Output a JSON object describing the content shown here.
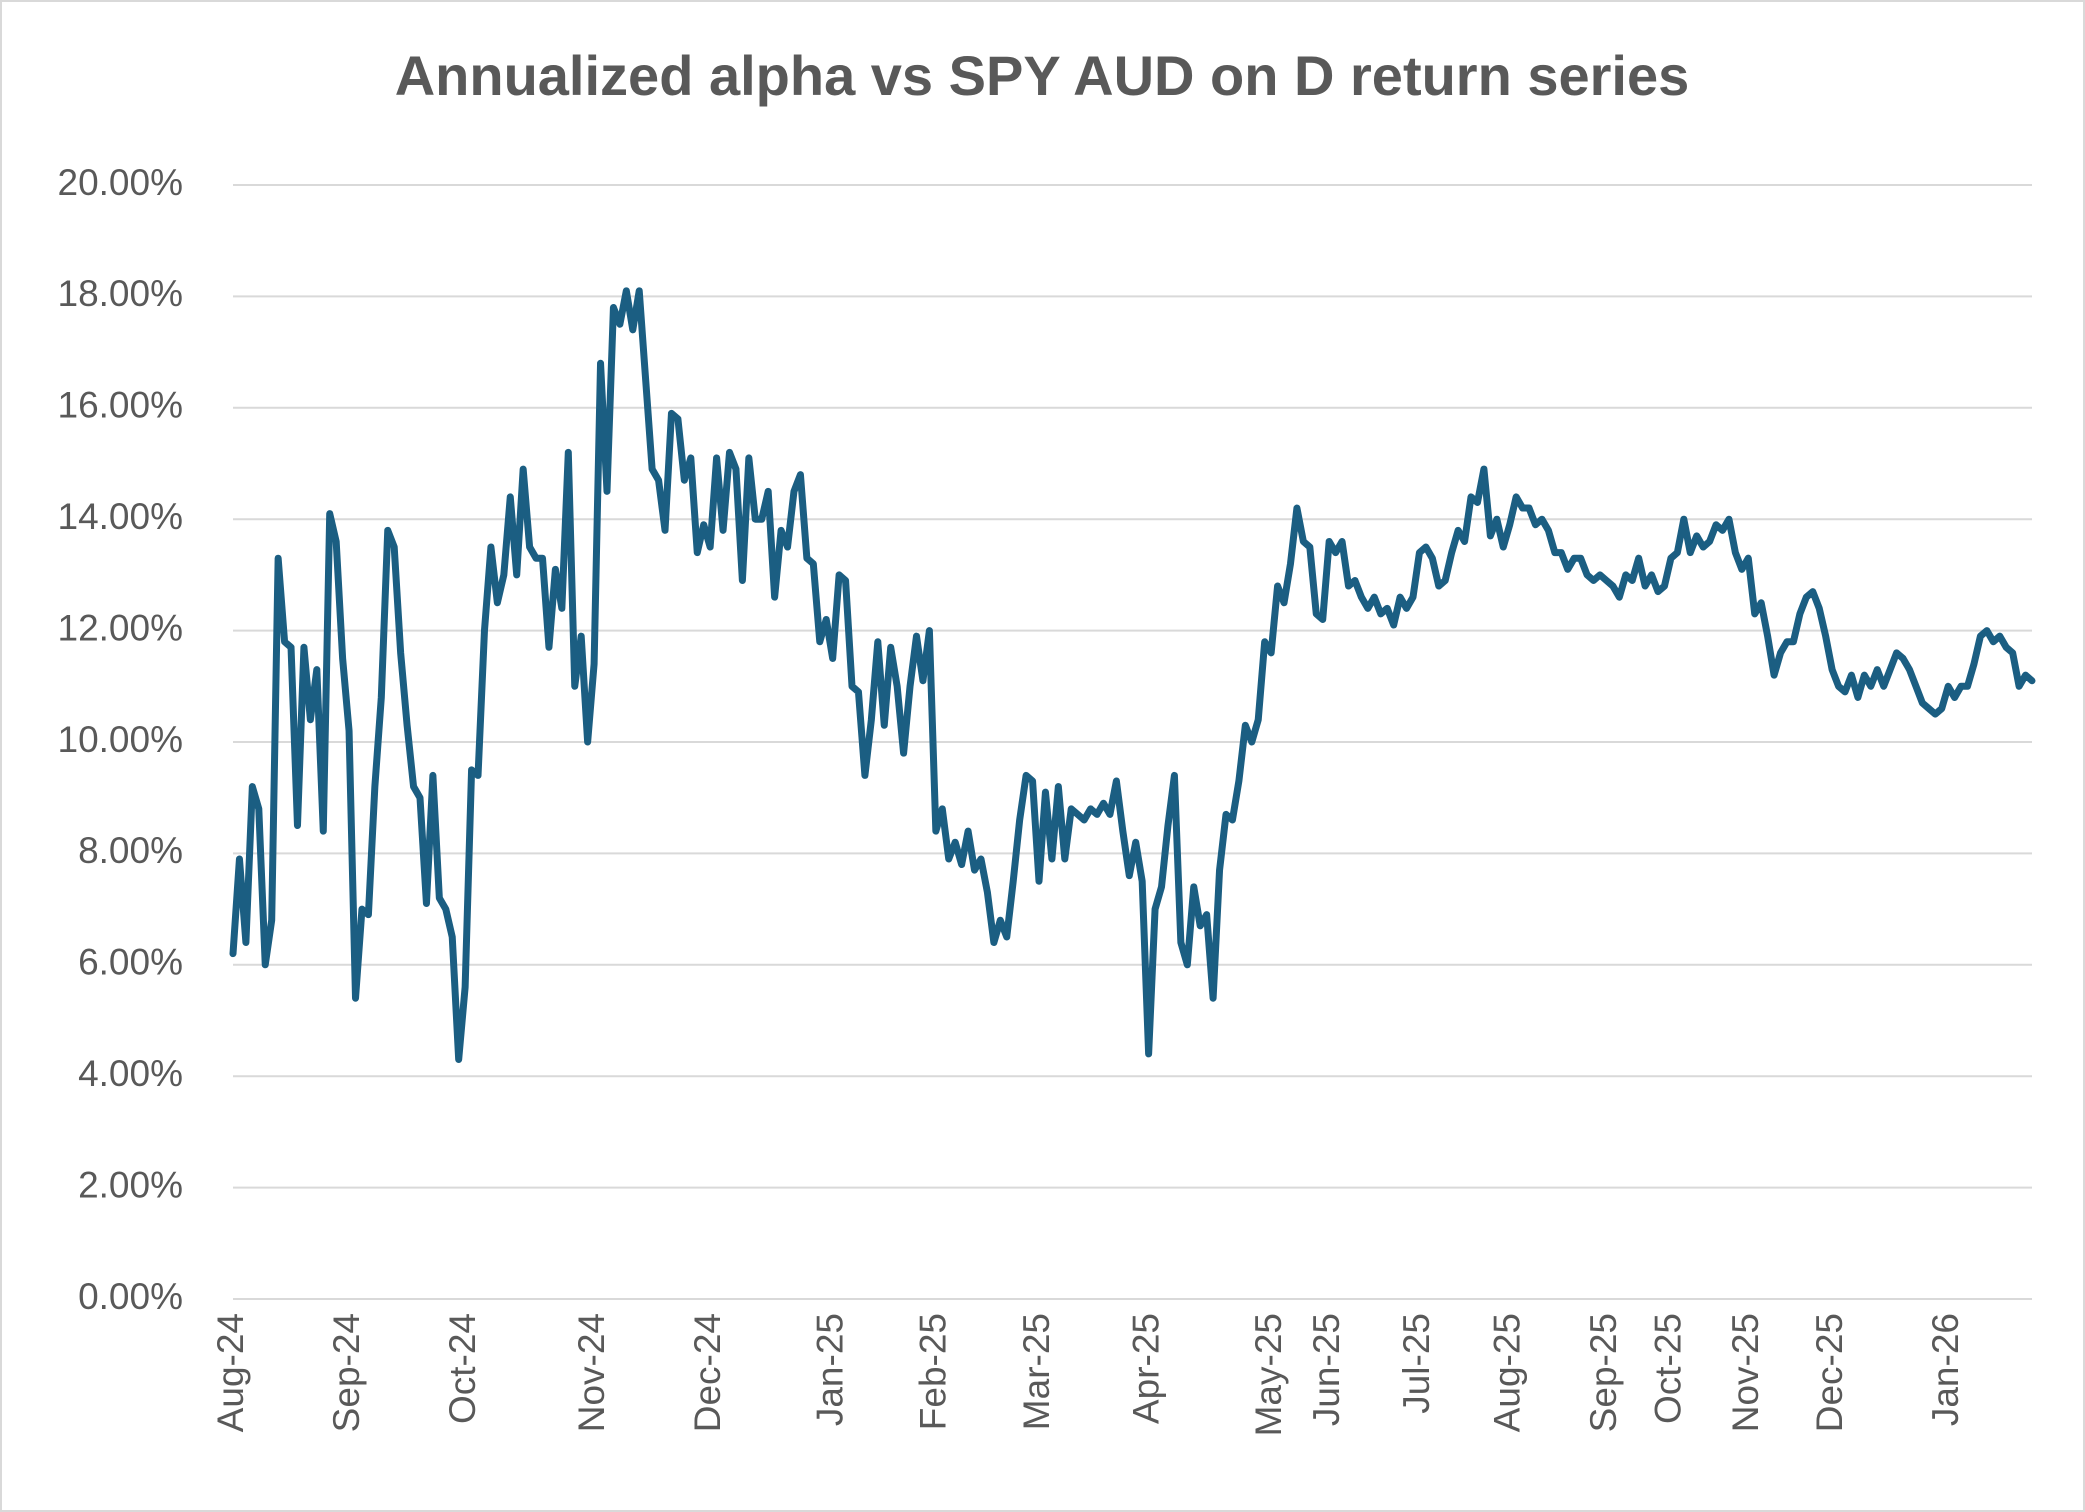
{
  "chart_data": {
    "type": "line",
    "title": "Annualized alpha vs SPY AUD on D return series",
    "color": "#1b5e82",
    "grid": true,
    "ylim": [
      0,
      20
    ],
    "yticks": [
      {
        "value": 0,
        "label": "0.00%"
      },
      {
        "value": 2,
        "label": "2.00%"
      },
      {
        "value": 4,
        "label": "4.00%"
      },
      {
        "value": 6,
        "label": "6.00%"
      },
      {
        "value": 8,
        "label": "8.00%"
      },
      {
        "value": 10,
        "label": "10.00%"
      },
      {
        "value": 12,
        "label": "12.00%"
      },
      {
        "value": 14,
        "label": "14.00%"
      },
      {
        "value": 16,
        "label": "16.00%"
      },
      {
        "value": 18,
        "label": "18.00%"
      },
      {
        "value": 20,
        "label": "20.00%"
      }
    ],
    "categories": [
      "Aug-24",
      null,
      null,
      null,
      null,
      null,
      null,
      null,
      null,
      null,
      null,
      null,
      null,
      null,
      null,
      null,
      null,
      null,
      "Sep-24",
      null,
      null,
      null,
      null,
      null,
      null,
      null,
      null,
      null,
      null,
      null,
      null,
      null,
      null,
      null,
      null,
      null,
      "Oct-24",
      null,
      null,
      null,
      null,
      null,
      null,
      null,
      null,
      null,
      null,
      null,
      null,
      null,
      null,
      null,
      null,
      null,
      null,
      null,
      "Nov-24",
      null,
      null,
      null,
      null,
      null,
      null,
      null,
      null,
      null,
      null,
      null,
      null,
      null,
      null,
      null,
      null,
      null,
      "Dec-24",
      null,
      null,
      null,
      null,
      null,
      null,
      null,
      null,
      null,
      null,
      null,
      null,
      null,
      null,
      null,
      null,
      null,
      null,
      "Jan-25",
      null,
      null,
      null,
      null,
      null,
      null,
      null,
      null,
      null,
      null,
      null,
      null,
      null,
      null,
      null,
      "Feb-25",
      null,
      null,
      null,
      null,
      null,
      null,
      null,
      null,
      null,
      null,
      null,
      null,
      null,
      null,
      null,
      "Mar-25",
      null,
      null,
      null,
      null,
      null,
      null,
      null,
      null,
      null,
      null,
      null,
      null,
      null,
      null,
      null,
      null,
      "Apr-25",
      null,
      null,
      null,
      null,
      null,
      null,
      null,
      null,
      null,
      null,
      null,
      null,
      null,
      null,
      null,
      null,
      null,
      null,
      "May-25",
      null,
      null,
      null,
      null,
      null,
      null,
      null,
      null,
      "Jun-25",
      null,
      null,
      null,
      null,
      null,
      null,
      null,
      null,
      null,
      null,
      null,
      null,
      null,
      "Jul-25",
      null,
      null,
      null,
      null,
      null,
      null,
      null,
      null,
      null,
      null,
      null,
      null,
      null,
      "Aug-25",
      null,
      null,
      null,
      null,
      null,
      null,
      null,
      null,
      null,
      null,
      null,
      null,
      null,
      null,
      "Sep-25",
      null,
      null,
      null,
      null,
      null,
      null,
      null,
      null,
      null,
      "Oct-25",
      null,
      null,
      null,
      null,
      null,
      null,
      null,
      null,
      null,
      null,
      null,
      "Nov-25",
      null,
      null,
      null,
      null,
      null,
      null,
      null,
      null,
      null,
      null,
      null,
      null,
      "Dec-25",
      null,
      null,
      null,
      null,
      null,
      null,
      null,
      null,
      null,
      null,
      null,
      null,
      null,
      null,
      null,
      null,
      null,
      "Jan-26",
      null,
      null,
      null,
      null,
      null,
      null,
      null,
      null,
      null,
      null,
      null,
      null,
      null
    ],
    "values": [
      6.2,
      7.9,
      6.4,
      9.2,
      8.8,
      6.0,
      6.8,
      13.3,
      11.8,
      11.7,
      8.5,
      11.7,
      10.4,
      11.3,
      8.4,
      14.1,
      13.6,
      11.5,
      10.2,
      5.4,
      7.0,
      6.9,
      9.2,
      10.8,
      13.8,
      13.5,
      11.6,
      10.3,
      9.2,
      9.0,
      7.1,
      9.4,
      7.2,
      7.0,
      6.5,
      4.3,
      5.6,
      9.5,
      9.4,
      12.0,
      13.5,
      12.5,
      13.0,
      14.4,
      13.0,
      14.9,
      13.5,
      13.3,
      13.3,
      11.7,
      13.1,
      12.4,
      15.2,
      11.0,
      11.9,
      10.0,
      11.4,
      16.8,
      14.5,
      17.8,
      17.5,
      18.1,
      17.4,
      18.1,
      16.5,
      14.9,
      14.7,
      13.8,
      15.9,
      15.8,
      14.7,
      15.1,
      13.4,
      13.9,
      13.5,
      15.1,
      13.8,
      15.2,
      14.9,
      12.9,
      15.1,
      14.0,
      14.0,
      14.5,
      12.6,
      13.8,
      13.5,
      14.5,
      14.8,
      13.3,
      13.2,
      11.8,
      12.2,
      11.5,
      13.0,
      12.9,
      11.0,
      10.9,
      9.4,
      10.4,
      11.8,
      10.3,
      11.7,
      11.0,
      9.8,
      11.0,
      11.9,
      11.1,
      12.0,
      8.4,
      8.8,
      7.9,
      8.2,
      7.8,
      8.4,
      7.7,
      7.9,
      7.3,
      6.4,
      6.8,
      6.5,
      7.5,
      8.6,
      9.4,
      9.3,
      7.5,
      9.1,
      7.9,
      9.2,
      7.9,
      8.8,
      8.7,
      8.6,
      8.8,
      8.7,
      8.9,
      8.7,
      9.3,
      8.4,
      7.6,
      8.2,
      7.5,
      4.4,
      7.0,
      7.4,
      8.5,
      9.4,
      6.4,
      6.0,
      7.4,
      6.7,
      6.9,
      5.4,
      7.7,
      8.7,
      8.6,
      9.3,
      10.3,
      10.0,
      10.4,
      11.8,
      11.6,
      12.8,
      12.5,
      13.2,
      14.2,
      13.6,
      13.5,
      12.3,
      12.2,
      13.6,
      13.4,
      13.6,
      12.8,
      12.9,
      12.6,
      12.4,
      12.6,
      12.3,
      12.4,
      12.1,
      12.6,
      12.4,
      12.6,
      13.4,
      13.5,
      13.3,
      12.8,
      12.9,
      13.4,
      13.8,
      13.6,
      14.4,
      14.3,
      14.9,
      13.7,
      14.0,
      13.5,
      13.9,
      14.4,
      14.2,
      14.2,
      13.9,
      14.0,
      13.8,
      13.4,
      13.4,
      13.1,
      13.3,
      13.3,
      13.0,
      12.9,
      13.0,
      12.9,
      12.8,
      12.6,
      13.0,
      12.9,
      13.3,
      12.8,
      13.0,
      12.7,
      12.8,
      13.3,
      13.4,
      14.0,
      13.4,
      13.7,
      13.5,
      13.6,
      13.9,
      13.8,
      14.0,
      13.4,
      13.1,
      13.3,
      12.3,
      12.5,
      11.9,
      11.2,
      11.6,
      11.8,
      11.8,
      12.3,
      12.6,
      12.7,
      12.4,
      11.9,
      11.3,
      11.0,
      10.9,
      11.2,
      10.8,
      11.2,
      11.0,
      11.3,
      11.0,
      11.3,
      11.6,
      11.5,
      11.3,
      11.0,
      10.7,
      10.6,
      10.5,
      10.6,
      11.0,
      10.8,
      11.0,
      11.0,
      11.4,
      11.9,
      12.0,
      11.8,
      11.9,
      11.7,
      11.6,
      11.0,
      11.2,
      11.1
    ]
  }
}
